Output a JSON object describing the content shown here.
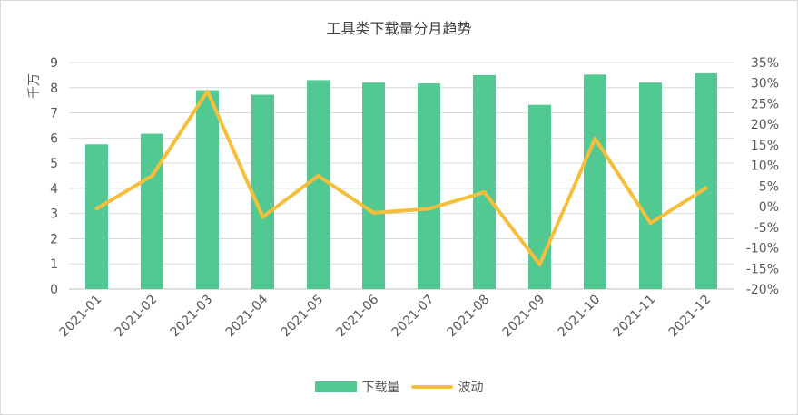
{
  "chart_data": {
    "type": "bar",
    "title": "工具类下载量分月趋势",
    "categories": [
      "2021-01",
      "2021-02",
      "2021-03",
      "2021-04",
      "2021-05",
      "2021-06",
      "2021-07",
      "2021-08",
      "2021-09",
      "2021-10",
      "2021-11",
      "2021-12"
    ],
    "series": [
      {
        "name": "下载量",
        "type": "bar",
        "axis": "left",
        "color": "#52c993",
        "values": [
          5.75,
          6.17,
          7.9,
          7.72,
          8.3,
          8.2,
          8.17,
          8.5,
          7.32,
          8.52,
          8.2,
          8.57
        ]
      },
      {
        "name": "波动",
        "type": "line",
        "axis": "right",
        "color": "#f5bf3b",
        "values": [
          -0.5,
          7.5,
          28,
          -2.5,
          7.5,
          -1.5,
          -0.5,
          3.5,
          -14,
          16.5,
          -4,
          4.5
        ]
      }
    ],
    "ylabel": "千万",
    "ylim": [
      0,
      9
    ],
    "yticks": [
      "0",
      "1",
      "2",
      "3",
      "4",
      "5",
      "6",
      "7",
      "8",
      "9"
    ],
    "y2lim": [
      -20,
      35
    ],
    "y2ticks": [
      "-20%",
      "-15%",
      "-10%",
      "-5%",
      "0%",
      "5%",
      "10%",
      "15%",
      "20%",
      "25%",
      "30%",
      "35%"
    ],
    "grid": true,
    "legend_position": "bottom"
  }
}
